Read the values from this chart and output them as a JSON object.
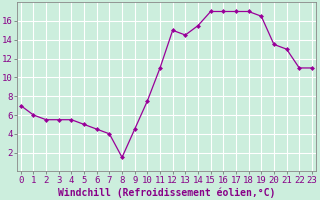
{
  "x": [
    0,
    1,
    2,
    3,
    4,
    5,
    6,
    7,
    8,
    9,
    10,
    11,
    12,
    13,
    14,
    15,
    16,
    17,
    18,
    19,
    20,
    21,
    22,
    23
  ],
  "y": [
    7,
    6,
    5.5,
    5.5,
    5.5,
    5,
    4.5,
    4,
    1.5,
    4.5,
    7.5,
    11,
    15,
    14.5,
    15.5,
    17,
    17,
    17,
    17,
    16.5,
    13.5,
    13,
    11,
    11
  ],
  "line_color": "#990099",
  "marker_color": "#990099",
  "bg_color": "#cceedd",
  "grid_color": "#aaddcc",
  "xlabel": "Windchill (Refroidissement éolien,°C)",
  "xlabel_fontsize": 7,
  "tick_fontsize": 6.5,
  "ylim": [
    0,
    18
  ],
  "yticks": [
    2,
    4,
    6,
    8,
    10,
    12,
    14,
    16
  ],
  "xticks": [
    0,
    1,
    2,
    3,
    4,
    5,
    6,
    7,
    8,
    9,
    10,
    11,
    12,
    13,
    14,
    15,
    16,
    17,
    18,
    19,
    20,
    21,
    22,
    23
  ],
  "xlim": [
    -0.3,
    23.3
  ]
}
